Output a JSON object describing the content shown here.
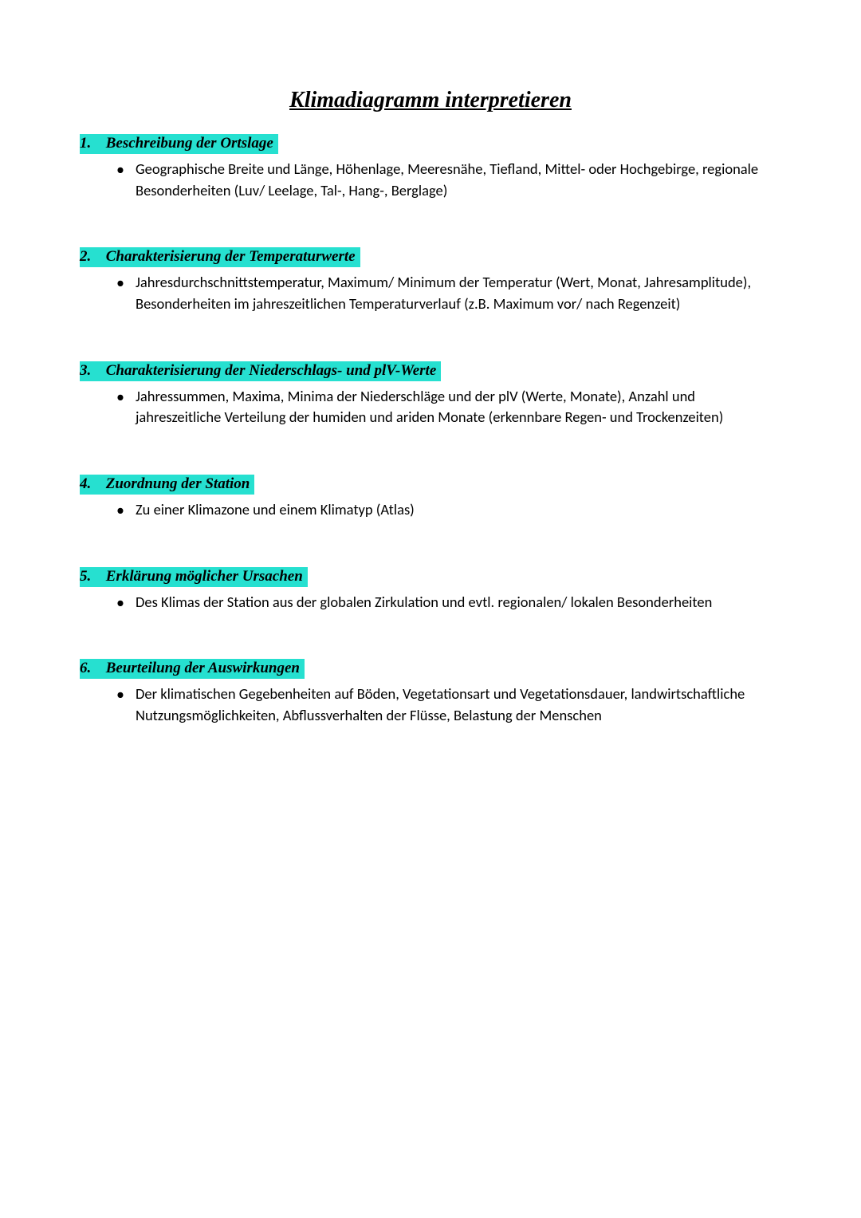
{
  "title": "Klimadiagramm interpretieren",
  "highlight_color": "#26e0d0",
  "text_color": "#000000",
  "background_color": "#ffffff",
  "title_fontsize_pt": 21,
  "heading_fontsize_pt": 14,
  "body_fontsize_pt": 14,
  "sections": [
    {
      "num": "1.",
      "heading": "Beschreibung der Ortslage",
      "items": [
        "Geographische Breite und Länge, Höhenlage, Meeresnähe, Tiefland, Mittel- oder Hochgebirge, regionale Besonderheiten (Luv/ Leelage, Tal-, Hang-, Berglage)"
      ]
    },
    {
      "num": "2.",
      "heading": "Charakterisierung der Temperaturwerte",
      "items": [
        "Jahresdurchschnittstemperatur, Maximum/ Minimum der Temperatur (Wert, Monat, Jahresamplitude), Besonderheiten im jahreszeitlichen Temperaturverlauf (z.B. Maximum vor/ nach Regenzeit)"
      ]
    },
    {
      "num": "3.",
      "heading": "Charakterisierung der Niederschlags- und plV-Werte",
      "items": [
        "Jahressummen, Maxima, Minima der Niederschläge und der plV (Werte, Monate), Anzahl und jahreszeitliche Verteilung der humiden und ariden Monate (erkennbare Regen- und Trockenzeiten)"
      ]
    },
    {
      "num": "4.",
      "heading": "Zuordnung der Station",
      "items": [
        "Zu einer Klimazone und einem Klimatyp (Atlas)"
      ]
    },
    {
      "num": "5.",
      "heading": "Erklärung möglicher Ursachen",
      "items": [
        "Des Klimas der Station aus der globalen Zirkulation und evtl. regionalen/ lokalen Besonderheiten"
      ]
    },
    {
      "num": "6.",
      "heading": "Beurteilung der Auswirkungen",
      "items": [
        "Der klimatischen Gegebenheiten auf Böden, Vegetationsart und Vegetationsdauer, landwirtschaftliche Nutzungsmöglichkeiten, Abflussverhalten der Flüsse, Belastung der Menschen"
      ]
    }
  ]
}
